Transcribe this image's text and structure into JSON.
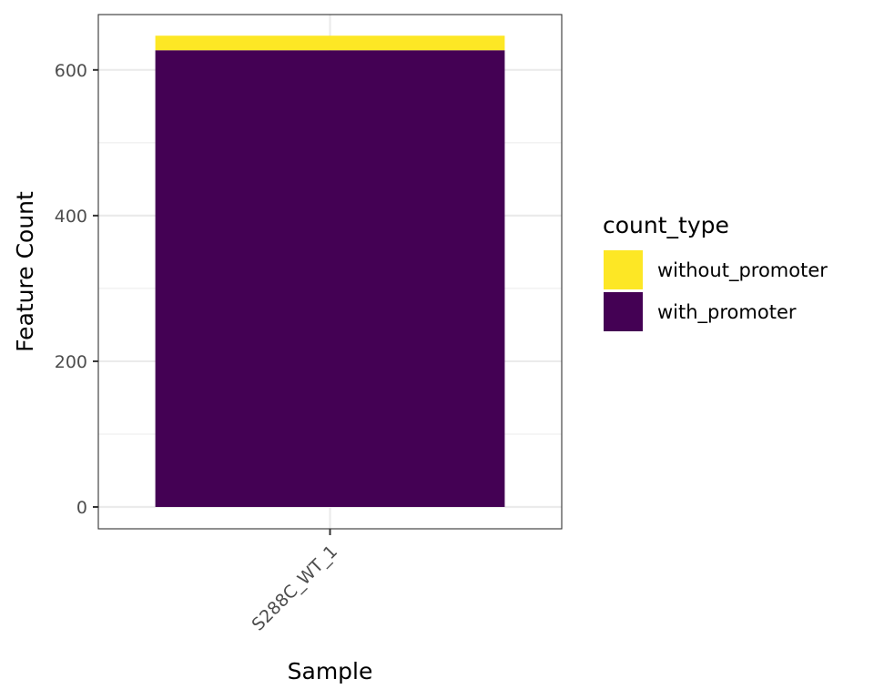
{
  "chart_data": {
    "type": "bar",
    "stacked": true,
    "xlabel": "Sample",
    "ylabel": "Feature Count",
    "categories": [
      "S288C_WT_1"
    ],
    "ylim": [
      -30,
      676
    ],
    "yticks": [
      0,
      200,
      400,
      600
    ],
    "grid": true,
    "legend_position": "right",
    "legend_title": "count_type",
    "series": [
      {
        "name": "with_promoter",
        "values": [
          627
        ],
        "color": "#440154"
      },
      {
        "name": "without_promoter",
        "values": [
          20
        ],
        "color": "#FDE725"
      }
    ],
    "legend_order": [
      "without_promoter",
      "with_promoter"
    ]
  }
}
